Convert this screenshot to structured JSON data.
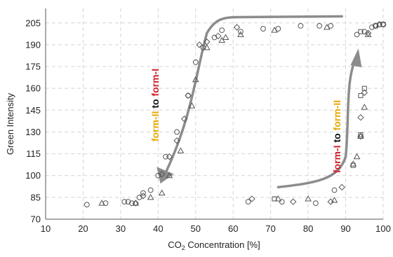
{
  "chart_data": {
    "type": "scatter",
    "xlabel": "CO2 Concentration [%]",
    "xlabel_main": "CO",
    "xlabel_sub": "2",
    "xlabel_rest": " Concentration [%]",
    "ylabel": "Green Intensity",
    "xlim": [
      10,
      100
    ],
    "ylim": [
      70,
      215
    ],
    "x_ticks": [
      10,
      20,
      30,
      40,
      50,
      60,
      70,
      80,
      90,
      100
    ],
    "y_ticks": [
      70,
      85,
      100,
      115,
      130,
      145,
      160,
      175,
      190,
      205
    ],
    "grid": "dashed",
    "annotations": [
      {
        "id": "left",
        "parts": [
          {
            "text": "form-II",
            "color": "#e8a800"
          },
          {
            "text": " to ",
            "color": "#111111"
          },
          {
            "text": "form-I",
            "color": "#d0202a"
          }
        ]
      },
      {
        "id": "right",
        "parts": [
          {
            "text": "form-I",
            "color": "#d0202a"
          },
          {
            "text": " to ",
            "color": "#111111"
          },
          {
            "text": "form-II",
            "color": "#e8a800"
          }
        ]
      }
    ],
    "arrow_color": "#8c8c8c",
    "series": [
      {
        "marker": "circle",
        "points": [
          [
            21,
            80
          ],
          [
            26,
            81
          ],
          [
            31,
            82
          ],
          [
            32,
            82
          ],
          [
            33,
            81
          ],
          [
            35,
            85
          ],
          [
            36,
            88
          ],
          [
            38,
            90
          ],
          [
            40,
            100
          ],
          [
            42,
            113
          ],
          [
            45,
            130
          ],
          [
            48,
            155
          ],
          [
            50,
            178
          ],
          [
            52,
            188
          ],
          [
            55,
            195
          ],
          [
            57,
            200
          ],
          [
            62,
            199
          ],
          [
            68,
            201
          ],
          [
            72,
            201
          ],
          [
            78,
            203
          ],
          [
            83,
            203
          ],
          [
            86,
            203
          ],
          [
            64,
            82
          ],
          [
            73,
            82
          ],
          [
            82,
            81
          ],
          [
            87,
            90
          ],
          [
            93,
            197
          ],
          [
            95,
            199
          ],
          [
            97,
            202
          ],
          [
            98,
            203
          ],
          [
            99,
            204
          ],
          [
            100,
            204
          ]
        ]
      },
      {
        "marker": "diamond",
        "points": [
          [
            34,
            81
          ],
          [
            36,
            86
          ],
          [
            41,
            101
          ],
          [
            43,
            113
          ],
          [
            45,
            124
          ],
          [
            47,
            139
          ],
          [
            48,
            155
          ],
          [
            51,
            190
          ],
          [
            53,
            192
          ],
          [
            56,
            196
          ],
          [
            61,
            202
          ],
          [
            65,
            84
          ],
          [
            76,
            82
          ],
          [
            86,
            82
          ],
          [
            89,
            92
          ],
          [
            94,
            127
          ],
          [
            94,
            140
          ],
          [
            95,
            157
          ],
          [
            96,
            198
          ],
          [
            98,
            203
          ],
          [
            100,
            204
          ]
        ]
      },
      {
        "marker": "triangle",
        "points": [
          [
            25,
            81
          ],
          [
            34,
            81
          ],
          [
            38,
            85
          ],
          [
            41,
            88
          ],
          [
            43,
            100
          ],
          [
            46,
            117
          ],
          [
            49,
            148
          ],
          [
            50,
            166
          ],
          [
            53,
            188
          ],
          [
            57,
            193
          ],
          [
            58,
            195
          ],
          [
            62,
            197
          ],
          [
            71,
            200
          ],
          [
            85,
            202
          ],
          [
            72,
            84
          ],
          [
            80,
            84
          ],
          [
            87,
            83
          ],
          [
            92,
            108
          ],
          [
            93,
            113
          ],
          [
            94,
            127
          ],
          [
            95,
            147
          ],
          [
            96,
            197
          ],
          [
            99,
            204
          ]
        ]
      },
      {
        "marker": "square",
        "points": [
          [
            71,
            84
          ],
          [
            92,
            107
          ],
          [
            94,
            128
          ],
          [
            94,
            155
          ],
          [
            95,
            160
          ],
          [
            94,
            199
          ],
          [
            98,
            203
          ],
          [
            100,
            204
          ]
        ]
      }
    ]
  }
}
